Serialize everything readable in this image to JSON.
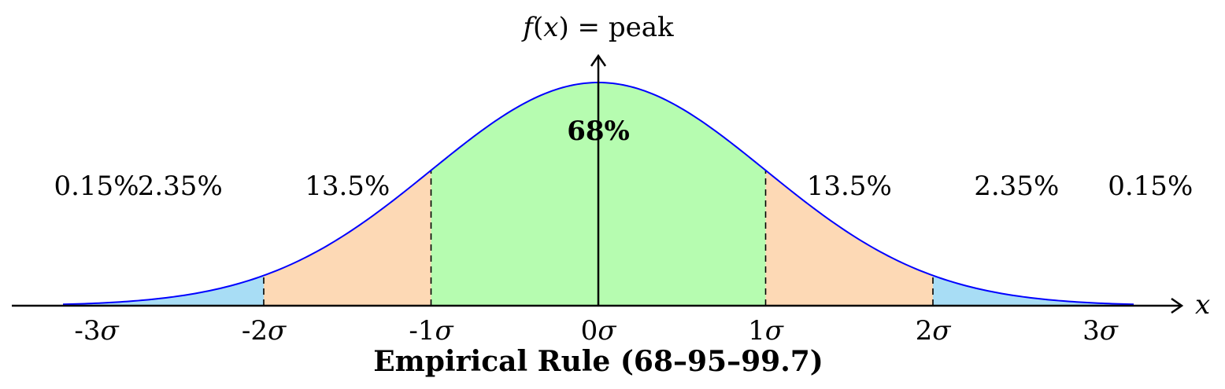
{
  "chart_data": {
    "type": "area",
    "title": "Empirical Rule (68–95–99.7)",
    "y_axis_label": {
      "prefix_italic": "f",
      "open": "(",
      "var": "x",
      "rest": ") = peak"
    },
    "x_axis_label": "x",
    "mu": 0,
    "sigma": 1,
    "xlim": [
      -3.5,
      3.5
    ],
    "curve_domain": [
      -3.2,
      3.2
    ],
    "ticks": [
      {
        "value": -3,
        "label": "-3",
        "sym": "σ"
      },
      {
        "value": -2,
        "label": "-2",
        "sym": "σ"
      },
      {
        "value": -1,
        "label": "-1",
        "sym": "σ"
      },
      {
        "value": 0,
        "label": "0",
        "sym": "σ"
      },
      {
        "value": 1,
        "label": "1",
        "sym": "σ"
      },
      {
        "value": 2,
        "label": "2",
        "sym": "σ"
      },
      {
        "value": 3,
        "label": "3",
        "sym": "σ"
      }
    ],
    "regions": [
      {
        "from": -3.2,
        "to": -2,
        "color": "#a8ddf5"
      },
      {
        "from": -2,
        "to": -1,
        "color": "#fdd9b5"
      },
      {
        "from": -1,
        "to": 1,
        "color": "#b6fcb0"
      },
      {
        "from": 1,
        "to": 2,
        "color": "#fdd9b5"
      },
      {
        "from": 2,
        "to": 3.2,
        "color": "#a8ddf5"
      }
    ],
    "divider_lines": [
      -2,
      -1,
      0,
      1,
      2
    ],
    "percent_labels": [
      {
        "text": "0.15%",
        "x": -3.0,
        "bold": false
      },
      {
        "text": "2.35%",
        "x": -2.5,
        "bold": false
      },
      {
        "text": "13.5%",
        "x": -1.5,
        "bold": false
      },
      {
        "text": "68%",
        "x": 0,
        "bold": true
      },
      {
        "text": "13.5%",
        "x": 1.5,
        "bold": false
      },
      {
        "text": "2.35%",
        "x": 2.5,
        "bold": false
      },
      {
        "text": "0.15%",
        "x": 3.3,
        "bold": false
      }
    ],
    "curve_color": "#0000ff",
    "axis_color": "#000000"
  }
}
